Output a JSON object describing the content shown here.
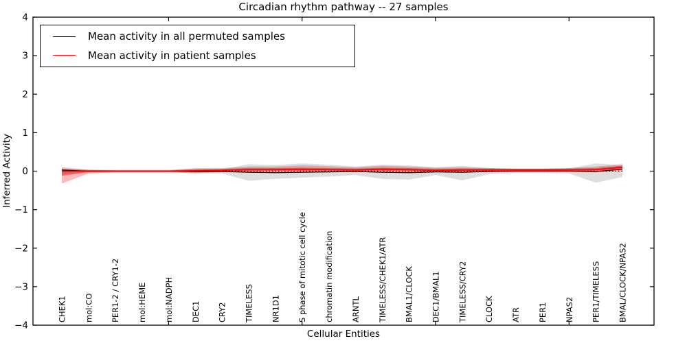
{
  "figure": {
    "title": "Circadian rhythm pathway -- 27 samples",
    "background": "#ffffff"
  },
  "chart_data": {
    "type": "line",
    "title": "Circadian rhythm pathway -- 27 samples",
    "xlabel": "Cellular Entities",
    "ylabel": "Inferred Activity",
    "ylim": [
      -4,
      4
    ],
    "yticks": [
      -4,
      -3,
      -2,
      -1,
      0,
      1,
      2,
      3,
      4
    ],
    "grid": false,
    "legend_position": "upper left",
    "xtick_major_indices": [
      4,
      9,
      14,
      19
    ],
    "categories": [
      "CHEK1",
      "mol:CO",
      "PER1-2 / CRY1-2",
      "mol:HEME",
      "mol:NADPH",
      "DEC1",
      "CRY2",
      "TIMELESS",
      "NR1D1",
      "S phase of mitotic cell cycle",
      "chromatin modification",
      "ARNTL",
      "TIMELESS/CHEK1/ATR",
      "BMAL1/CLOCK",
      "DEC1/BMAL1",
      "TIMELESS/CRY2",
      "CLOCK",
      "ATR",
      "PER1",
      "NPAS2",
      "PER1/TIMELESS",
      "BMAL/CLOCK/NPAS2"
    ],
    "series": [
      {
        "name": "Mean activity in all permuted samples",
        "color": "#000000",
        "line_width": 1.2,
        "values": [
          0.03,
          0.0,
          0.0,
          0.0,
          0.0,
          -0.01,
          -0.01,
          -0.03,
          -0.04,
          -0.03,
          -0.02,
          -0.01,
          -0.03,
          -0.04,
          -0.02,
          -0.03,
          -0.01,
          0.0,
          0.0,
          0.0,
          -0.01,
          0.05
        ]
      },
      {
        "name": "Mean activity in patient samples",
        "color": "#ff0000",
        "line_width": 1.8,
        "values": [
          0.0,
          0.0,
          0.0,
          0.0,
          0.0,
          0.01,
          0.02,
          0.04,
          0.04,
          0.05,
          0.04,
          0.03,
          0.05,
          0.04,
          0.02,
          0.03,
          0.03,
          0.03,
          0.03,
          0.03,
          0.04,
          0.1
        ]
      }
    ],
    "bands": [
      {
        "name": "permuted-samples-spread",
        "color": "rgba(160,160,160,0.35)",
        "upper": [
          0.07,
          0.02,
          0.02,
          0.02,
          0.02,
          0.05,
          0.05,
          0.18,
          0.16,
          0.2,
          0.17,
          0.12,
          0.17,
          0.15,
          0.1,
          0.14,
          0.08,
          0.06,
          0.06,
          0.07,
          0.2,
          0.16
        ],
        "lower": [
          -0.08,
          -0.02,
          -0.02,
          -0.02,
          -0.02,
          -0.07,
          -0.06,
          -0.25,
          -0.2,
          -0.17,
          -0.14,
          -0.1,
          -0.2,
          -0.22,
          -0.1,
          -0.24,
          -0.08,
          -0.05,
          -0.05,
          -0.06,
          -0.3,
          -0.15
        ]
      },
      {
        "name": "patient-samples-spread",
        "color": "rgba(235,60,60,0.35)",
        "upper": [
          0.1,
          0.04,
          0.03,
          0.03,
          0.03,
          0.08,
          0.08,
          0.12,
          0.12,
          0.15,
          0.13,
          0.1,
          0.14,
          0.12,
          0.09,
          0.1,
          0.08,
          0.07,
          0.07,
          0.08,
          0.12,
          0.18
        ],
        "lower": [
          -0.32,
          -0.06,
          -0.03,
          -0.03,
          -0.03,
          -0.05,
          -0.03,
          -0.03,
          -0.02,
          -0.02,
          -0.02,
          -0.02,
          -0.02,
          -0.03,
          -0.02,
          -0.03,
          -0.02,
          -0.02,
          -0.02,
          -0.02,
          -0.03,
          0.0
        ]
      },
      {
        "name": "patient-samples-inner-spread",
        "color": "rgba(210,20,20,0.45)",
        "upper": [
          0.05,
          0.03,
          0.02,
          0.02,
          0.02,
          0.05,
          0.06,
          0.08,
          0.08,
          0.09,
          0.08,
          0.07,
          0.09,
          0.08,
          0.06,
          0.07,
          0.07,
          0.06,
          0.06,
          0.07,
          0.08,
          0.14
        ],
        "lower": [
          -0.12,
          -0.03,
          -0.02,
          -0.02,
          -0.02,
          -0.03,
          -0.02,
          0.0,
          0.0,
          0.01,
          0.0,
          -0.01,
          0.01,
          0.0,
          -0.01,
          -0.01,
          -0.01,
          0.0,
          0.0,
          -0.01,
          -0.01,
          0.05
        ]
      }
    ],
    "reference_line": {
      "y": 0,
      "style": "dotted",
      "color": "#000000"
    }
  },
  "legend": {
    "entries": [
      {
        "label": "Mean activity in all permuted samples",
        "color": "#000000"
      },
      {
        "label": "Mean activity in patient samples",
        "color": "#ff0000"
      }
    ]
  }
}
